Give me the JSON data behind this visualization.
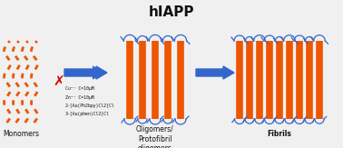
{
  "title": "hIAPP",
  "title_fontsize": 11,
  "title_fontweight": "bold",
  "background_color": "#f0f0f0",
  "orange_color": "#EE5500",
  "blue_color": "#3366CC",
  "arrow_color": "#3366CC",
  "red_x_color": "#DD0000",
  "text_color": "#111111",
  "labels": {
    "monomers": "Monomers",
    "oligomers": "Oligomers/\nProtofibril\noligomers",
    "fibrils": "Fibrils"
  },
  "inhibitor_text": [
    "Cu²⁺ C=10μM",
    "Zn²⁺ C=10μM",
    "2-[Au(Ph2bpy)Cl2]Cl",
    "3-[Au(phen)Cl2]Cl"
  ],
  "figsize": [
    3.78,
    1.63
  ],
  "dpi": 100
}
